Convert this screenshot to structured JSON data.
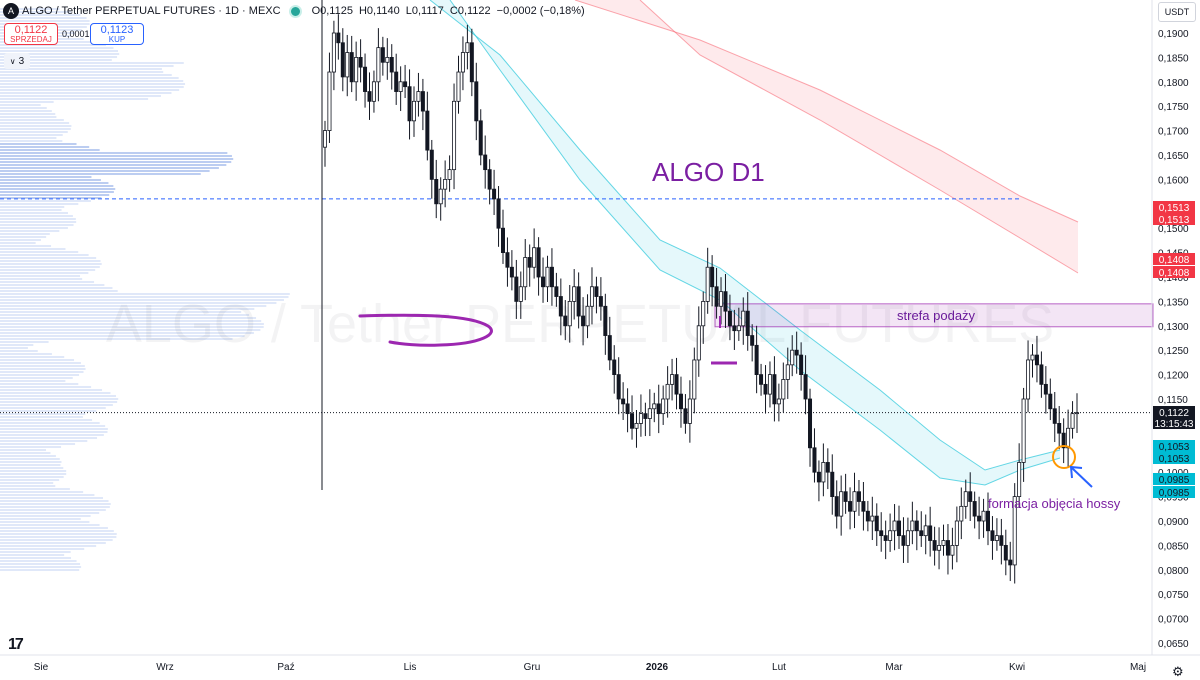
{
  "header": {
    "symbol": "ALGO / Tether PERPETUAL FUTURES · 1D · MEXC",
    "o_label": "O",
    "o_value": "0,1125",
    "h_label": "H",
    "h_value": "0,1140",
    "l_label": "L",
    "l_value": "0,1117",
    "c_label": "C",
    "c_value": "0,1122",
    "change": "−0,0002 (−0,18%)",
    "status_color": "#26a69a"
  },
  "trade": {
    "sell_price": "0,1122",
    "sell_label": "SPRZEDAJ",
    "spread": "0,0001",
    "buy_price": "0,1123",
    "buy_label": "KUP"
  },
  "layers_toggle": "3",
  "currency": "USDT",
  "watermark": "ALGO / Tether PERPETUAL FUTURES",
  "chart_data": {
    "type": "candlestick",
    "title": "ALGO D1",
    "y_ticks": [
      "0,1900",
      "0,1850",
      "0,1800",
      "0,1750",
      "0,1700",
      "0,1650",
      "0,1600",
      "0,1550",
      "0,1500",
      "0,1450",
      "0,1400",
      "0,1350",
      "0,1300",
      "0,1250",
      "0,1200",
      "0,1150",
      "0,1100",
      "0,1050",
      "0,1000",
      "0,0950",
      "0,0900",
      "0,0850",
      "0,0800",
      "0,0750",
      "0,0700",
      "0,0650"
    ],
    "x_ticks": [
      "Sie",
      "Wrz",
      "Paź",
      "Lis",
      "Gru",
      "2026",
      "Lut",
      "Mar",
      "Kwi",
      "Maj"
    ],
    "ylim": [
      0.064,
      0.193
    ],
    "price_labels": [
      {
        "value": "0,1513",
        "color": "#f23645"
      },
      {
        "value": "0,1513",
        "color": "#f23645"
      },
      {
        "value": "0,1408",
        "color": "#f23645"
      },
      {
        "value": "0,1408",
        "color": "#f23645"
      },
      {
        "value": "0,1122",
        "color": "#131722"
      },
      {
        "value": "13:15:43",
        "color": "#131722"
      },
      {
        "value": "0,1053",
        "color": "#00bcd4"
      },
      {
        "value": "0,1053",
        "color": "#00bcd4"
      },
      {
        "value": "0,0985",
        "color": "#00bcd4"
      },
      {
        "value": "0,0985",
        "color": "#00bcd4"
      }
    ],
    "last_price": 0.1122,
    "dashed_level": 0.156,
    "supply_zone": {
      "label": "strefa podaży",
      "y_low": 0.1298,
      "y_high": 0.1345
    },
    "annotation": "formacja objęcia hossy",
    "colors": {
      "up": "#131722",
      "down": "#131722",
      "supply_zone": "#9c27b0",
      "annotation": "#7b1fa2",
      "red_band": "#f7525f",
      "cyan_band": "#26c6da",
      "marker": "#ff9800",
      "arrow": "#2962ff"
    },
    "close": [
      0.17,
      0.182,
      0.19,
      0.188,
      0.181,
      0.186,
      0.18,
      0.185,
      0.183,
      0.178,
      0.176,
      0.18,
      0.187,
      0.184,
      0.185,
      0.182,
      0.178,
      0.18,
      0.179,
      0.172,
      0.176,
      0.178,
      0.174,
      0.166,
      0.16,
      0.155,
      0.158,
      0.16,
      0.162,
      0.176,
      0.182,
      0.186,
      0.188,
      0.18,
      0.172,
      0.165,
      0.162,
      0.158,
      0.156,
      0.15,
      0.145,
      0.142,
      0.14,
      0.135,
      0.138,
      0.144,
      0.142,
      0.146,
      0.14,
      0.138,
      0.142,
      0.138,
      0.136,
      0.132,
      0.13,
      0.135,
      0.138,
      0.132,
      0.13,
      0.134,
      0.138,
      0.136,
      0.134,
      0.128,
      0.123,
      0.12,
      0.115,
      0.114,
      0.112,
      0.109,
      0.11,
      0.112,
      0.111,
      0.113,
      0.114,
      0.112,
      0.115,
      0.118,
      0.12,
      0.116,
      0.113,
      0.11,
      0.115,
      0.123,
      0.13,
      0.135,
      0.142,
      0.138,
      0.134,
      0.137,
      0.133,
      0.13,
      0.129,
      0.13,
      0.133,
      0.128,
      0.126,
      0.12,
      0.118,
      0.116,
      0.12,
      0.114,
      0.115,
      0.119,
      0.122,
      0.125,
      0.124,
      0.12,
      0.115,
      0.105,
      0.1,
      0.098,
      0.102,
      0.1,
      0.095,
      0.091,
      0.096,
      0.094,
      0.092,
      0.096,
      0.094,
      0.092,
      0.09,
      0.091,
      0.088,
      0.087,
      0.086,
      0.088,
      0.09,
      0.087,
      0.085,
      0.088,
      0.09,
      0.088,
      0.087,
      0.089,
      0.086,
      0.084,
      0.085,
      0.086,
      0.083,
      0.085,
      0.09,
      0.093,
      0.096,
      0.094,
      0.091,
      0.09,
      0.092,
      0.088,
      0.086,
      0.087,
      0.085,
      0.082,
      0.081,
      0.095,
      0.102,
      0.115,
      0.123,
      0.124,
      0.122,
      0.118,
      0.116,
      0.113,
      0.11,
      0.108,
      0.105,
      0.109,
      0.112,
      0.1122
    ]
  }
}
